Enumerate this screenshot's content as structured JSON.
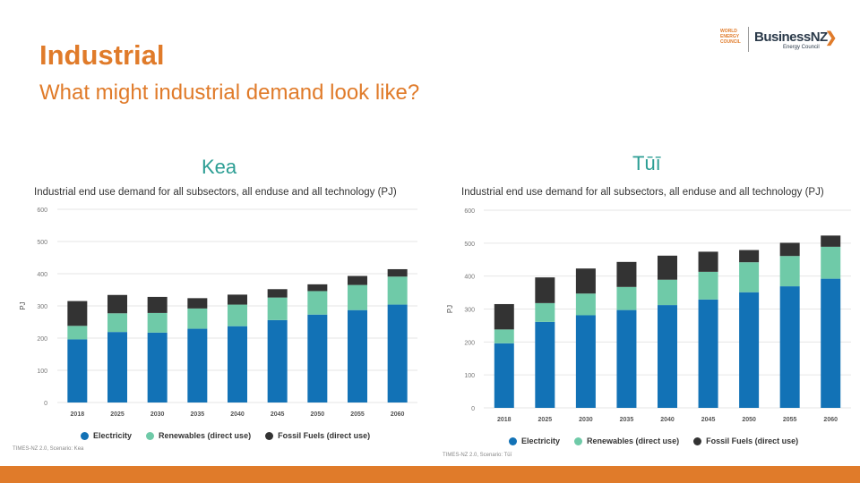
{
  "slide": {
    "title": "Industrial",
    "subtitle": "What might industrial demand look like?"
  },
  "logo": {
    "wec_line1": "WORLD",
    "wec_line2": "ENERGY",
    "wec_line3": "COUNCIL",
    "brand": "BusinessNZ",
    "brand_sub": "Energy Council"
  },
  "colors": {
    "accent": "#e07b2a",
    "scenario_label": "#2c9e94",
    "electricity": "#1272b6",
    "renewables": "#6fcaa8",
    "fossil": "#333333"
  },
  "chart_data": [
    {
      "scenario": "Kea",
      "type": "bar",
      "stacked": true,
      "title": "Industrial end use demand for all subsectors, all enduse and all technology (PJ)",
      "ylabel": "PJ",
      "xlabel": "",
      "ylim": [
        0,
        600
      ],
      "yticks": [
        0,
        100,
        200,
        300,
        400,
        500,
        600
      ],
      "grid": true,
      "categories": [
        "2018",
        "2025",
        "2030",
        "2035",
        "2040",
        "2045",
        "2050",
        "2055",
        "2060"
      ],
      "series": [
        {
          "name": "Electricity",
          "values": [
            196,
            219,
            217,
            229,
            237,
            256,
            273,
            287,
            304
          ]
        },
        {
          "name": "Renewables (direct use)",
          "values": [
            42,
            58,
            61,
            63,
            67,
            70,
            73,
            78,
            87
          ]
        },
        {
          "name": "Fossil Fuels (direct use)",
          "values": [
            77,
            57,
            50,
            32,
            31,
            26,
            21,
            28,
            23
          ]
        }
      ],
      "legend": [
        "Electricity",
        "Renewables (direct use)",
        "Fossil Fuels (direct use)"
      ],
      "source": "TIMES-NZ 2.0, Scenario: Kea"
    },
    {
      "scenario": "Tūī",
      "type": "bar",
      "stacked": true,
      "title": "Industrial end use demand for all subsectors, all enduse and all technology (PJ)",
      "ylabel": "PJ",
      "xlabel": "",
      "ylim": [
        0,
        600
      ],
      "yticks": [
        0,
        100,
        200,
        300,
        400,
        500,
        600
      ],
      "grid": true,
      "categories": [
        "2018",
        "2025",
        "2030",
        "2035",
        "2040",
        "2045",
        "2050",
        "2055",
        "2060"
      ],
      "series": [
        {
          "name": "Electricity",
          "values": [
            196,
            261,
            281,
            297,
            312,
            329,
            351,
            369,
            392
          ]
        },
        {
          "name": "Renewables (direct use)",
          "values": [
            42,
            57,
            66,
            70,
            77,
            84,
            91,
            92,
            97
          ]
        },
        {
          "name": "Fossil Fuels (direct use)",
          "values": [
            77,
            78,
            76,
            76,
            73,
            61,
            37,
            40,
            34
          ]
        }
      ],
      "legend": [
        "Electricity",
        "Renewables (direct use)",
        "Fossil Fuels (direct use)"
      ],
      "source": "TIMES-NZ 2.0, Scenario: Tūī"
    }
  ]
}
